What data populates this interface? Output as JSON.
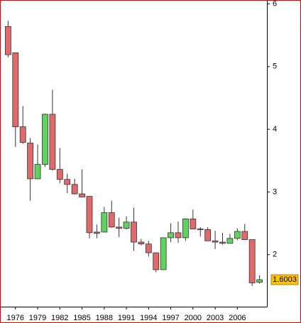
{
  "chart_data": {
    "type": "candlestick",
    "x": [
      1975,
      1976,
      1977,
      1978,
      1979,
      1980,
      1981,
      1982,
      1983,
      1984,
      1985,
      1986,
      1987,
      1988,
      1989,
      1990,
      1991,
      1992,
      1993,
      1994,
      1995,
      1996,
      1997,
      1998,
      1999,
      2000,
      2001,
      2002,
      2003,
      2004,
      2005,
      2006,
      2007,
      2008,
      2009
    ],
    "open": [
      5.64,
      5.22,
      4.04,
      3.78,
      3.21,
      3.44,
      4.24,
      3.36,
      3.2,
      3.12,
      2.97,
      2.93,
      2.36,
      2.36,
      2.67,
      2.44,
      2.42,
      2.52,
      2.2,
      2.17,
      2.03,
      1.76,
      2.27,
      2.35,
      2.27,
      2.57,
      2.41,
      2.4,
      2.22,
      2.2,
      2.18,
      2.26,
      2.37,
      2.24,
      1.56
    ],
    "high": [
      5.73,
      5.22,
      4.37,
      3.86,
      3.76,
      4.25,
      4.63,
      3.7,
      3.29,
      3.21,
      3.36,
      2.93,
      2.48,
      2.76,
      2.86,
      2.59,
      2.61,
      2.75,
      2.25,
      2.22,
      2.03,
      2.27,
      2.5,
      2.53,
      2.58,
      2.72,
      2.44,
      2.44,
      2.38,
      2.35,
      2.33,
      2.42,
      2.49,
      2.24,
      1.67
    ],
    "low": [
      5.15,
      3.72,
      3.77,
      2.86,
      3.21,
      3.4,
      3.34,
      3.14,
      2.98,
      2.96,
      2.92,
      2.26,
      2.26,
      2.36,
      2.43,
      2.28,
      2.4,
      2.06,
      2.15,
      1.97,
      1.72,
      1.76,
      2.2,
      2.19,
      2.22,
      2.41,
      2.29,
      2.22,
      2.09,
      2.16,
      2.18,
      2.23,
      2.24,
      1.5,
      1.54
    ],
    "close": [
      5.19,
      4.04,
      3.79,
      3.21,
      3.44,
      4.24,
      3.36,
      3.2,
      3.12,
      2.97,
      2.92,
      2.35,
      2.34,
      2.67,
      2.44,
      2.42,
      2.52,
      2.2,
      2.17,
      2.03,
      1.76,
      2.27,
      2.35,
      2.27,
      2.57,
      2.41,
      2.4,
      2.22,
      2.2,
      2.18,
      2.26,
      2.37,
      2.24,
      1.55,
      1.6003
    ],
    "up_color": "#5ed35e",
    "down_color": "#e06a6a",
    "last_price_color": "#ffc200",
    "xlim": [
      1974.1,
      2010
    ],
    "xticks": [
      1976,
      1979,
      1982,
      1985,
      1988,
      1991,
      1994,
      1997,
      2000,
      2003,
      2006
    ],
    "ylim": [
      1.17,
      6.04
    ],
    "yticks": [
      2,
      3,
      4,
      5,
      6
    ]
  }
}
